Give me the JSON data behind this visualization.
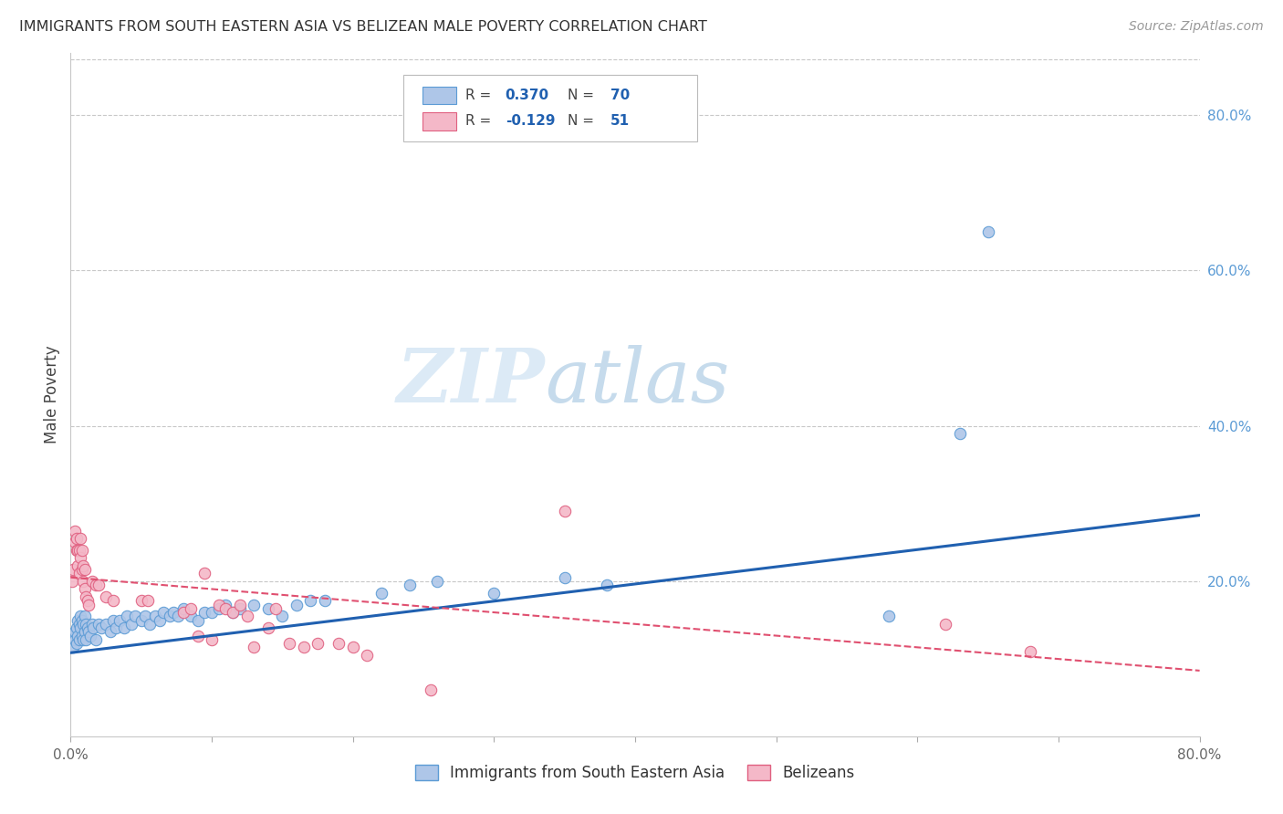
{
  "title": "IMMIGRANTS FROM SOUTH EASTERN ASIA VS BELIZEAN MALE POVERTY CORRELATION CHART",
  "source": "Source: ZipAtlas.com",
  "ylabel": "Male Poverty",
  "x_min": 0.0,
  "x_max": 0.8,
  "y_min": 0.0,
  "y_max": 0.88,
  "x_ticks": [
    0.0,
    0.1,
    0.2,
    0.3,
    0.4,
    0.5,
    0.6,
    0.7,
    0.8
  ],
  "y_ticks_right": [
    0.2,
    0.4,
    0.6,
    0.8
  ],
  "y_tick_labels_right": [
    "20.0%",
    "40.0%",
    "60.0%",
    "80.0%"
  ],
  "grid_color": "#c8c8c8",
  "background_color": "#ffffff",
  "series1_color": "#aec6e8",
  "series1_edge_color": "#5b9bd5",
  "series2_color": "#f4b8c8",
  "series2_edge_color": "#e06080",
  "line1_color": "#2060b0",
  "line2_color": "#e05070",
  "legend_label1": "Immigrants from South Eastern Asia",
  "legend_label2": "Belizeans",
  "watermark_zip": "ZIP",
  "watermark_atlas": "atlas",
  "marker_size": 80,
  "series1_x": [
    0.001,
    0.002,
    0.003,
    0.003,
    0.004,
    0.004,
    0.005,
    0.005,
    0.006,
    0.006,
    0.007,
    0.007,
    0.008,
    0.008,
    0.009,
    0.009,
    0.01,
    0.01,
    0.011,
    0.011,
    0.012,
    0.013,
    0.014,
    0.015,
    0.016,
    0.018,
    0.02,
    0.022,
    0.025,
    0.028,
    0.03,
    0.032,
    0.035,
    0.038,
    0.04,
    0.043,
    0.046,
    0.05,
    0.053,
    0.056,
    0.06,
    0.063,
    0.066,
    0.07,
    0.073,
    0.076,
    0.08,
    0.085,
    0.09,
    0.095,
    0.1,
    0.105,
    0.11,
    0.115,
    0.12,
    0.13,
    0.14,
    0.15,
    0.16,
    0.17,
    0.18,
    0.22,
    0.24,
    0.26,
    0.3,
    0.35,
    0.38,
    0.58,
    0.63,
    0.65
  ],
  "series1_y": [
    0.13,
    0.115,
    0.125,
    0.135,
    0.12,
    0.14,
    0.13,
    0.15,
    0.125,
    0.145,
    0.14,
    0.155,
    0.13,
    0.15,
    0.125,
    0.145,
    0.135,
    0.155,
    0.125,
    0.145,
    0.14,
    0.135,
    0.13,
    0.145,
    0.14,
    0.125,
    0.145,
    0.14,
    0.145,
    0.135,
    0.15,
    0.14,
    0.15,
    0.14,
    0.155,
    0.145,
    0.155,
    0.15,
    0.155,
    0.145,
    0.155,
    0.15,
    0.16,
    0.155,
    0.16,
    0.155,
    0.165,
    0.155,
    0.15,
    0.16,
    0.16,
    0.165,
    0.17,
    0.16,
    0.165,
    0.17,
    0.165,
    0.155,
    0.17,
    0.175,
    0.175,
    0.185,
    0.195,
    0.2,
    0.185,
    0.205,
    0.195,
    0.155,
    0.39,
    0.65
  ],
  "series2_x": [
    0.001,
    0.002,
    0.003,
    0.003,
    0.004,
    0.004,
    0.005,
    0.005,
    0.006,
    0.006,
    0.007,
    0.007,
    0.008,
    0.008,
    0.009,
    0.009,
    0.01,
    0.01,
    0.011,
    0.012,
    0.013,
    0.015,
    0.018,
    0.02,
    0.025,
    0.03,
    0.05,
    0.055,
    0.08,
    0.085,
    0.09,
    0.095,
    0.1,
    0.105,
    0.11,
    0.115,
    0.12,
    0.125,
    0.13,
    0.14,
    0.145,
    0.155,
    0.165,
    0.175,
    0.19,
    0.2,
    0.21,
    0.255,
    0.35,
    0.62,
    0.68
  ],
  "series2_y": [
    0.2,
    0.215,
    0.25,
    0.265,
    0.24,
    0.255,
    0.22,
    0.24,
    0.21,
    0.24,
    0.23,
    0.255,
    0.215,
    0.24,
    0.2,
    0.22,
    0.19,
    0.215,
    0.18,
    0.175,
    0.17,
    0.2,
    0.195,
    0.195,
    0.18,
    0.175,
    0.175,
    0.175,
    0.16,
    0.165,
    0.13,
    0.21,
    0.125,
    0.17,
    0.165,
    0.16,
    0.17,
    0.155,
    0.115,
    0.14,
    0.165,
    0.12,
    0.115,
    0.12,
    0.12,
    0.115,
    0.105,
    0.06,
    0.29,
    0.145,
    0.11
  ],
  "line1_x0": 0.0,
  "line1_y0": 0.108,
  "line1_x1": 0.8,
  "line1_y1": 0.285,
  "line2_x0": 0.0,
  "line2_y0": 0.205,
  "line2_x1": 0.8,
  "line2_y1": 0.085
}
